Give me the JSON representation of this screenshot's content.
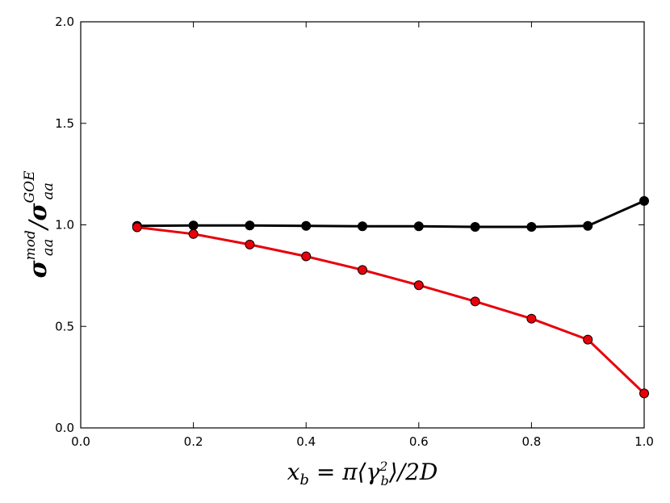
{
  "chart_data": {
    "type": "line",
    "xlabel": {
      "pre": "x",
      "pre_sub": "b",
      "mid": " = π",
      "lb": "⟨",
      "var": "γ",
      "var_sub": "b",
      "var_sup": "2",
      "rb": "⟩",
      "post": "/2D"
    },
    "ylabel": {
      "num": "σ",
      "num_sup": "mod",
      "num_sub": "aa",
      "slash": "/",
      "den": "σ",
      "den_sup": "GOE",
      "den_sub": "aa"
    },
    "xlim": [
      0.0,
      1.0
    ],
    "ylim": [
      0.0,
      2.0
    ],
    "xticks": [
      "0.0",
      "0.2",
      "0.4",
      "0.6",
      "0.8",
      "1.0"
    ],
    "yticks": [
      "0.0",
      "0.5",
      "1.0",
      "1.5",
      "2.0"
    ],
    "grid": false,
    "x": [
      0.1,
      0.2,
      0.3,
      0.4,
      0.5,
      0.6,
      0.7,
      0.8,
      0.9,
      1.0
    ],
    "series": [
      {
        "color": "#000000",
        "values": [
          0.995,
          0.997,
          0.997,
          0.995,
          0.993,
          0.993,
          0.99,
          0.99,
          0.995,
          1.118
        ]
      },
      {
        "color": "#e8000b",
        "values": [
          0.988,
          0.955,
          0.903,
          0.845,
          0.778,
          0.703,
          0.623,
          0.538,
          0.435,
          0.17
        ]
      }
    ]
  }
}
